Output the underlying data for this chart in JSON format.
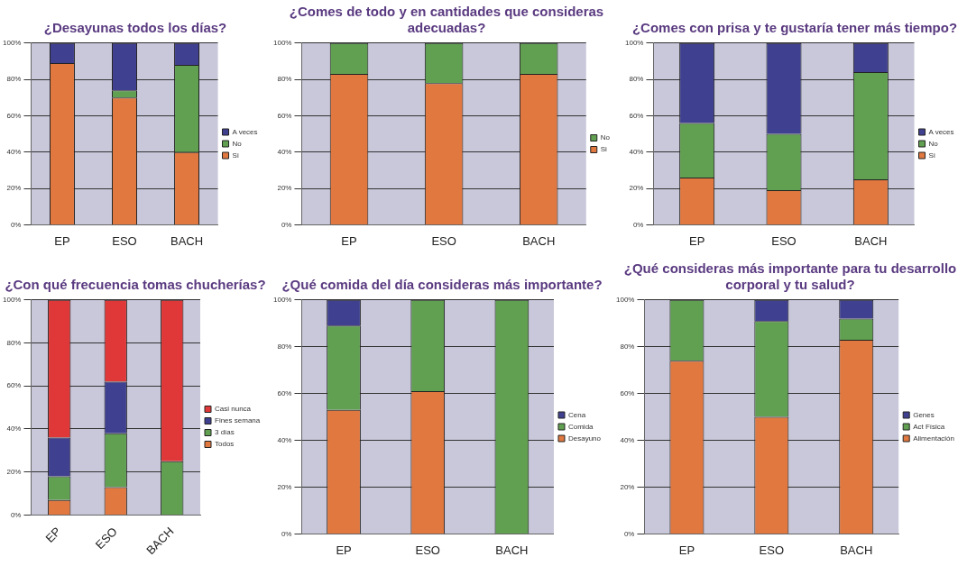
{
  "chart_data": [
    {
      "type": "bar",
      "stacked": true,
      "title": "¿Desayunas todos los días?",
      "categories": [
        "EP",
        "ESO",
        "BACH"
      ],
      "series": [
        {
          "name": "Si",
          "color": "#e07840",
          "values": [
            89,
            70,
            40
          ]
        },
        {
          "name": "No",
          "color": "#60a050",
          "values": [
            0,
            4,
            48
          ]
        },
        {
          "name": "A veces",
          "color": "#404090",
          "values": [
            11,
            26,
            12
          ]
        }
      ],
      "ylim": [
        0,
        100
      ],
      "yticks": [
        {
          "value": 0,
          "label": "0%"
        },
        {
          "value": 20,
          "label": "20%"
        },
        {
          "value": 40,
          "label": "40%"
        },
        {
          "value": 60,
          "label": "60%"
        },
        {
          "value": 80,
          "label": "80%"
        },
        {
          "value": 100,
          "label": "100%"
        }
      ],
      "grid": "y",
      "legend": "right"
    },
    {
      "type": "bar",
      "stacked": true,
      "title": "¿Comes de todo y en cantidades que consideras adecuadas?",
      "categories": [
        "EP",
        "ESO",
        "BACH"
      ],
      "series": [
        {
          "name": "Si",
          "color": "#e07840",
          "values": [
            83,
            78,
            83
          ]
        },
        {
          "name": "No",
          "color": "#60a050",
          "values": [
            17,
            22,
            17
          ]
        }
      ],
      "ylim": [
        0,
        100
      ],
      "yticks": [
        {
          "value": 0,
          "label": "0%"
        },
        {
          "value": 20,
          "label": "20%"
        },
        {
          "value": 40,
          "label": "40%"
        },
        {
          "value": 60,
          "label": "60%"
        },
        {
          "value": 80,
          "label": "80%"
        },
        {
          "value": 100,
          "label": "100%"
        }
      ],
      "grid": "y",
      "legend": "right"
    },
    {
      "type": "bar",
      "stacked": true,
      "title": "¿Comes con prisa y te gustaría tener más tiempo?",
      "categories": [
        "EP",
        "ESO",
        "BACH"
      ],
      "series": [
        {
          "name": "Si",
          "color": "#e07840",
          "values": [
            26,
            19,
            25
          ]
        },
        {
          "name": "No",
          "color": "#60a050",
          "values": [
            30,
            31,
            59
          ]
        },
        {
          "name": "A veces",
          "color": "#404090",
          "values": [
            44,
            50,
            16
          ]
        }
      ],
      "ylim": [
        0,
        100
      ],
      "yticks": [
        {
          "value": 0,
          "label": "0%"
        },
        {
          "value": 20,
          "label": "20%"
        },
        {
          "value": 40,
          "label": "40%"
        },
        {
          "value": 60,
          "label": "60%"
        },
        {
          "value": 80,
          "label": "80%"
        },
        {
          "value": 100,
          "label": "100%"
        }
      ],
      "grid": "y",
      "legend": "right"
    },
    {
      "type": "bar",
      "stacked": true,
      "title": "¿Con qué frecuencia tomas chucherías?",
      "categories": [
        "EP",
        "ESO",
        "BACH"
      ],
      "series": [
        {
          "name": "Todos",
          "color": "#e07840",
          "values": [
            7,
            13,
            0
          ]
        },
        {
          "name": "3 días",
          "color": "#60a050",
          "values": [
            11,
            25,
            25
          ]
        },
        {
          "name": "Fines semana",
          "color": "#404090",
          "values": [
            18,
            24,
            0
          ]
        },
        {
          "name": "Casi nunca",
          "color": "#e03838",
          "values": [
            64,
            38,
            75
          ]
        }
      ],
      "ylim": [
        0,
        100
      ],
      "yticks": [
        {
          "value": 0,
          "label": "0%"
        },
        {
          "value": 20,
          "label": "20%"
        },
        {
          "value": 40,
          "label": "40%"
        },
        {
          "value": 60,
          "label": "60%"
        },
        {
          "value": 80,
          "label": "80%"
        },
        {
          "value": 100,
          "label": "100%"
        }
      ],
      "grid": "y",
      "legend": "right"
    },
    {
      "type": "bar",
      "stacked": true,
      "title": "¿Qué comida del día consideras más importante?",
      "categories": [
        "EP",
        "ESO",
        "BACH"
      ],
      "series": [
        {
          "name": "Desayuno",
          "color": "#e07840",
          "values": [
            53,
            61,
            0
          ]
        },
        {
          "name": "Comida",
          "color": "#60a050",
          "values": [
            36,
            39,
            100
          ]
        },
        {
          "name": "Cena",
          "color": "#404090",
          "values": [
            11,
            0,
            0
          ]
        }
      ],
      "ylim": [
        0,
        100
      ],
      "yticks": [
        {
          "value": 0,
          "label": "0%"
        },
        {
          "value": 20,
          "label": "20%"
        },
        {
          "value": 40,
          "label": "40%"
        },
        {
          "value": 60,
          "label": "60%"
        },
        {
          "value": 80,
          "label": "80%"
        },
        {
          "value": 100,
          "label": "100%"
        }
      ],
      "grid": "y",
      "legend": "right"
    },
    {
      "type": "bar",
      "stacked": true,
      "title": "¿Qué consideras más importante para tu desarrollo corporal y tu salud?",
      "categories": [
        "EP",
        "ESO",
        "BACH"
      ],
      "series": [
        {
          "name": "Alimentación",
          "color": "#e07840",
          "values": [
            74,
            50,
            83
          ]
        },
        {
          "name": "Act Física",
          "color": "#60a050",
          "values": [
            26,
            41,
            9
          ]
        },
        {
          "name": "Genes",
          "color": "#404090",
          "values": [
            0,
            9,
            8
          ]
        }
      ],
      "ylim": [
        0,
        100
      ],
      "yticks": [
        {
          "value": 0,
          "label": "0%"
        },
        {
          "value": 20,
          "label": "20%"
        },
        {
          "value": 40,
          "label": "40%"
        },
        {
          "value": 60,
          "label": "60%"
        },
        {
          "value": 80,
          "label": "80%"
        },
        {
          "value": 100,
          "label": "100%"
        }
      ],
      "grid": "y",
      "legend": "right"
    }
  ]
}
